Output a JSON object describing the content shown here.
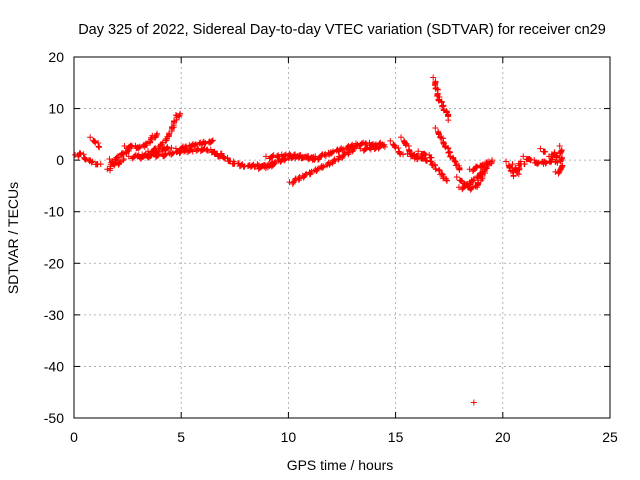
{
  "chart_data": {
    "type": "scatter",
    "title": "Day 325 of 2022, Sidereal Day-to-day VTEC variation (SDTVAR) for receiver cn29",
    "xlabel": "GPS time / hours",
    "ylabel": "SDTVAR / TECUs",
    "xlim": [
      0,
      25
    ],
    "ylim": [
      -50,
      20
    ],
    "xticks": [
      0,
      5,
      10,
      15,
      20,
      25
    ],
    "yticks": [
      20,
      10,
      0,
      -10,
      -20,
      -30,
      -40,
      -50
    ],
    "xtick_labels": [
      "0",
      "5",
      "10",
      "15",
      "20",
      "25"
    ],
    "ytick_labels": [
      "20",
      "10",
      "0",
      "-10",
      "-20",
      "-30",
      "-40",
      "-50"
    ],
    "grid": true,
    "marker": "plus",
    "series_color": "#ff0000",
    "series": [
      {
        "name": "segments",
        "segments": [
          [
            [
              0.1,
              0.8
            ],
            [
              0.3,
              1.3
            ],
            [
              0.5,
              0.5
            ],
            [
              0.7,
              -0.3
            ],
            [
              0.9,
              -0.2
            ]
          ],
          [
            [
              0.8,
              4.2
            ],
            [
              1.0,
              3.5
            ],
            [
              1.2,
              2.5
            ]
          ],
          [
            [
              0.9,
              -0.5
            ],
            [
              1.1,
              -0.8
            ],
            [
              1.2,
              -1.0
            ]
          ],
          [
            [
              1.6,
              -2.0
            ],
            [
              1.8,
              -0.5
            ],
            [
              2.0,
              0.5
            ],
            [
              2.2,
              1.0
            ],
            [
              2.4,
              1.5
            ],
            [
              2.6,
              2.0
            ]
          ],
          [
            [
              1.7,
              0.0
            ],
            [
              1.9,
              -1.0
            ],
            [
              2.1,
              -0.5
            ],
            [
              2.3,
              0.0
            ]
          ],
          [
            [
              2.4,
              2.5
            ],
            [
              2.7,
              2.6
            ],
            [
              3.0,
              2.5
            ],
            [
              3.3,
              2.8
            ],
            [
              3.5,
              3.5
            ],
            [
              3.7,
              4.5
            ],
            [
              3.9,
              5.0
            ]
          ],
          [
            [
              2.6,
              0.5
            ],
            [
              3.0,
              0.8
            ],
            [
              3.4,
              1.0
            ],
            [
              3.8,
              1.5
            ],
            [
              4.2,
              2.0
            ],
            [
              4.5,
              2.5
            ]
          ],
          [
            [
              3.5,
              1.5
            ],
            [
              3.8,
              2.0
            ],
            [
              4.1,
              3.0
            ],
            [
              4.4,
              4.5
            ],
            [
              4.6,
              6.5
            ],
            [
              4.8,
              8.5
            ],
            [
              4.95,
              9.0
            ]
          ],
          [
            [
              3.0,
              0.5
            ],
            [
              3.6,
              0.8
            ],
            [
              4.2,
              1.0
            ],
            [
              4.8,
              1.5
            ],
            [
              5.3,
              1.8
            ],
            [
              5.8,
              2.0
            ],
            [
              6.2,
              2.0
            ],
            [
              6.6,
              1.5
            ],
            [
              7.0,
              0.8
            ]
          ],
          [
            [
              4.8,
              2.0
            ],
            [
              5.2,
              2.5
            ],
            [
              5.6,
              3.0
            ],
            [
              6.0,
              3.3
            ],
            [
              6.3,
              3.5
            ],
            [
              6.5,
              3.6
            ]
          ],
          [
            [
              6.6,
              1.0
            ],
            [
              7.0,
              0.5
            ],
            [
              7.4,
              -0.5
            ],
            [
              7.8,
              -1.0
            ],
            [
              8.2,
              -1.2
            ],
            [
              8.6,
              -1.0
            ],
            [
              9.0,
              -1.2
            ],
            [
              9.4,
              -0.8
            ]
          ],
          [
            [
              8.5,
              -1.5
            ],
            [
              8.9,
              -1.3
            ],
            [
              9.3,
              -0.5
            ],
            [
              9.7,
              0.0
            ],
            [
              10.1,
              0.5
            ],
            [
              10.5,
              0.6
            ],
            [
              10.9,
              0.4
            ],
            [
              11.3,
              0.2
            ]
          ],
          [
            [
              9.0,
              0.5
            ],
            [
              9.5,
              0.8
            ],
            [
              10.0,
              1.0
            ],
            [
              10.5,
              0.8
            ],
            [
              11.0,
              0.5
            ],
            [
              11.4,
              0.2
            ]
          ],
          [
            [
              10.1,
              -4.5
            ],
            [
              10.5,
              -3.5
            ],
            [
              11.0,
              -2.5
            ],
            [
              11.5,
              -1.5
            ],
            [
              12.0,
              -0.5
            ],
            [
              12.4,
              0.5
            ],
            [
              12.8,
              1.5
            ],
            [
              13.2,
              2.5
            ]
          ],
          [
            [
              11.3,
              0.5
            ],
            [
              11.7,
              1.0
            ],
            [
              12.0,
              1.5
            ],
            [
              12.4,
              2.0
            ],
            [
              12.8,
              2.5
            ],
            [
              13.2,
              3.0
            ],
            [
              13.6,
              3.2
            ],
            [
              14.0,
              3.0
            ],
            [
              14.4,
              3.2
            ]
          ],
          [
            [
              13.4,
              2.0
            ],
            [
              13.8,
              2.3
            ],
            [
              14.2,
              2.5
            ],
            [
              14.5,
              2.8
            ]
          ],
          [
            [
              14.8,
              3.5
            ],
            [
              15.0,
              2.5
            ],
            [
              15.2,
              1.5
            ],
            [
              15.3,
              1.0
            ]
          ],
          [
            [
              15.3,
              4.2
            ],
            [
              15.5,
              3.0
            ],
            [
              15.7,
              1.5
            ],
            [
              15.9,
              0.5
            ],
            [
              16.2,
              0.3
            ]
          ],
          [
            [
              15.6,
              1.0
            ],
            [
              16.0,
              0.8
            ],
            [
              16.4,
              0.2
            ],
            [
              16.8,
              -1.0
            ],
            [
              17.1,
              -2.5
            ],
            [
              17.3,
              -3.5
            ],
            [
              17.4,
              -4.0
            ]
          ],
          [
            [
              16.1,
              1.5
            ],
            [
              16.4,
              1.0
            ],
            [
              16.7,
              0.5
            ]
          ],
          [
            [
              16.8,
              15.8
            ],
            [
              16.9,
              14.0
            ],
            [
              17.0,
              12.0
            ],
            [
              17.2,
              10.5
            ],
            [
              17.4,
              9.0
            ],
            [
              17.5,
              8.0
            ]
          ],
          [
            [
              16.9,
              6.0
            ],
            [
              17.1,
              4.5
            ],
            [
              17.3,
              3.0
            ],
            [
              17.5,
              1.5
            ],
            [
              17.7,
              0.0
            ],
            [
              17.9,
              -1.0
            ],
            [
              18.0,
              -2.0
            ]
          ],
          [
            [
              17.9,
              -3.5
            ],
            [
              18.2,
              -4.5
            ],
            [
              18.5,
              -5.5
            ],
            [
              18.8,
              -5.0
            ],
            [
              19.0,
              -3.5
            ],
            [
              19.1,
              -2.5
            ],
            [
              19.2,
              -1.5
            ]
          ],
          [
            [
              18.0,
              -5.5
            ],
            [
              18.3,
              -5.0
            ],
            [
              18.6,
              -4.0
            ],
            [
              18.9,
              -3.0
            ],
            [
              19.2,
              -1.5
            ],
            [
              19.4,
              -0.5
            ],
            [
              19.5,
              0.0
            ]
          ],
          [
            [
              18.5,
              -2.0
            ],
            [
              18.8,
              -1.5
            ],
            [
              19.0,
              -1.0
            ],
            [
              19.3,
              -0.5
            ]
          ],
          [
            [
              18.65,
              -47.0
            ]
          ],
          [
            [
              20.2,
              -0.5
            ],
            [
              20.4,
              -2.0
            ],
            [
              20.5,
              -3.0
            ]
          ],
          [
            [
              20.5,
              -1.0
            ],
            [
              20.7,
              -2.5
            ],
            [
              20.8,
              -0.5
            ],
            [
              21.0,
              -1.0
            ]
          ],
          [
            [
              21.0,
              0.5
            ],
            [
              21.3,
              0.0
            ],
            [
              21.6,
              -0.5
            ],
            [
              21.9,
              -0.5
            ],
            [
              22.2,
              -0.3
            ],
            [
              22.3,
              0.0
            ]
          ],
          [
            [
              21.8,
              2.0
            ],
            [
              22.0,
              1.5
            ]
          ],
          [
            [
              22.2,
              0.5
            ],
            [
              22.3,
              0.8
            ],
            [
              22.4,
              1.5
            ],
            [
              22.5,
              0.5
            ],
            [
              22.5,
              -0.5
            ]
          ],
          [
            [
              22.5,
              -2.5
            ],
            [
              22.7,
              -2.0
            ]
          ],
          [
            [
              22.7,
              2.5
            ],
            [
              22.75,
              -2.0
            ]
          ]
        ]
      }
    ]
  }
}
